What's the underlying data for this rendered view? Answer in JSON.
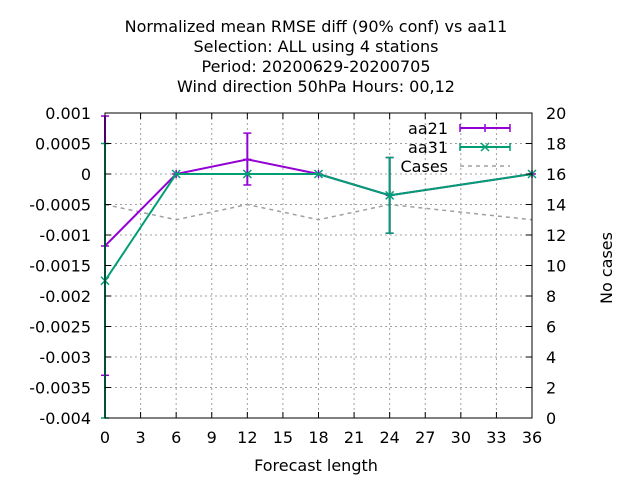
{
  "chart_data": {
    "type": "line",
    "title_lines": [
      "Normalized mean RMSE diff (90% conf) vs aa11",
      "Selection: ALL using     4 stations",
      "Period: 20200629-20200705",
      "Wind direction 50hPa   Hours:  00,12"
    ],
    "xlabel": "Forecast length",
    "ylabel": "",
    "y2label": "No cases",
    "xlim": [
      0,
      36
    ],
    "ylim": [
      -0.004,
      0.001
    ],
    "y2lim": [
      0,
      20
    ],
    "xticks": [
      "0",
      "3",
      "6",
      "9",
      "12",
      "15",
      "18",
      "21",
      "24",
      "27",
      "30",
      "33",
      "36"
    ],
    "yticks": [
      "0.001",
      "0.0005",
      "0",
      "-0.0005",
      "-0.001",
      "-0.0015",
      "-0.002",
      "-0.0025",
      "-0.003",
      "-0.0035",
      "-0.004"
    ],
    "y2ticks": [
      "20",
      "18",
      "16",
      "14",
      "12",
      "10",
      "8",
      "6",
      "4",
      "2",
      "0"
    ],
    "grid": true,
    "legend_position": "top-right",
    "series": [
      {
        "name": "aa21",
        "color": "#9400d3",
        "marker": "plus",
        "axis": "y",
        "x": [
          0,
          6,
          12,
          18,
          24,
          36
        ],
        "y": [
          -0.00118,
          0.0,
          0.00024,
          0.0,
          -0.00035,
          0.0
        ],
        "err_low": [
          -0.0033,
          0.0,
          -0.00018,
          0.0,
          -0.00097,
          0.0
        ],
        "err_high": [
          0.00095,
          0.0,
          0.00067,
          0.0,
          0.00027,
          0.0
        ]
      },
      {
        "name": "aa31",
        "color": "#009e73",
        "marker": "cross",
        "axis": "y",
        "x": [
          0,
          6,
          12,
          18,
          24,
          36
        ],
        "y": [
          -0.00175,
          0.0,
          0.0,
          0.0,
          -0.00035,
          0.0
        ],
        "err_low": [
          -0.004,
          0.0,
          0.0,
          0.0,
          -0.00097,
          0.0
        ],
        "err_high": [
          0.0005,
          0.0,
          0.0,
          0.0,
          0.00027,
          0.0
        ]
      },
      {
        "name": "Cases",
        "color": "#a0a0a0",
        "dashed": true,
        "axis": "y2",
        "x": [
          0,
          6,
          12,
          18,
          24,
          36
        ],
        "y": [
          14,
          13,
          14,
          13,
          14,
          13
        ]
      }
    ]
  }
}
